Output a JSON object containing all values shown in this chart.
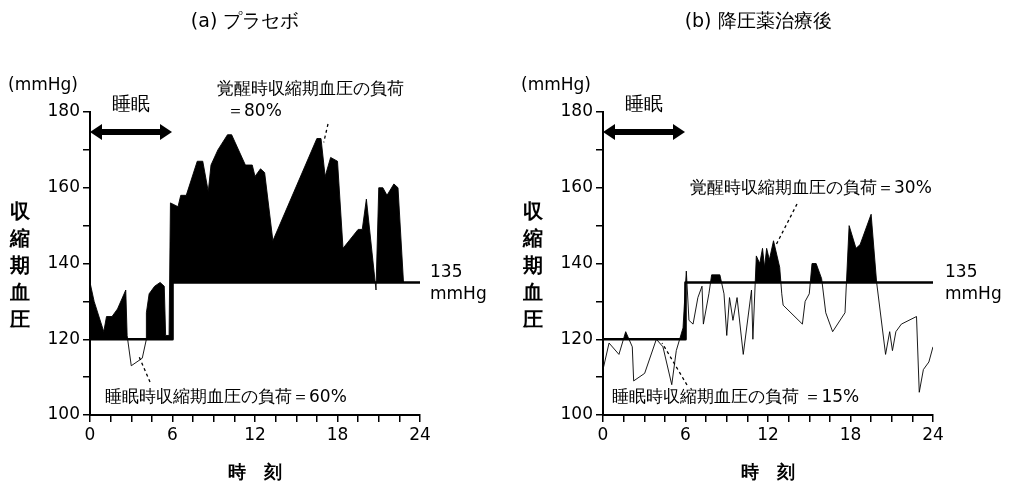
{
  "chart_data": [
    {
      "type": "line",
      "title": "(a) プラセボ",
      "xlabel": "時　刻",
      "ylabel": "収縮期血圧",
      "xlim": [
        0,
        24
      ],
      "ylim": [
        100,
        180
      ],
      "xticks": [
        0,
        {
          "value": 1.5,
          "label": null
        },
        {
          "value": 3,
          "label": null
        },
        {
          "value": 4.5,
          "label": null
        },
        6,
        {
          "value": 7.5,
          "label": null
        },
        {
          "value": 9,
          "label": null
        },
        {
          "value": 10.5,
          "label": null
        },
        12,
        {
          "value": 13.5,
          "label": null
        },
        {
          "value": 15,
          "label": null
        },
        {
          "value": 16.5,
          "label": null
        },
        18,
        {
          "value": 19.5,
          "label": null
        },
        {
          "value": 21,
          "label": null
        },
        {
          "value": 22.5,
          "label": null
        },
        24
      ],
      "yticks": [
        100,
        {
          "value": 110,
          "label": null
        },
        120,
        {
          "value": 130,
          "label": null
        },
        140,
        {
          "value": 150,
          "label": null
        },
        160,
        {
          "value": 170,
          "label": null
        },
        180
      ],
      "grid": false,
      "legend": false,
      "marker": "none",
      "series": [
        {
          "type": "area",
          "color": "#000000",
          "x": [
            0,
            0.3,
            1.0,
            1.2,
            1.6,
            2.0,
            2.6,
            2.7,
            3.0,
            3.8,
            4.1,
            4.1,
            4.3,
            4.7,
            5.1,
            5.4,
            5.5,
            5.75,
            5.85,
            6.4,
            6.6,
            7.0,
            7.8,
            8.2,
            8.6,
            8.8,
            9.3,
            10.0,
            10.3,
            11.3,
            11.8,
            12.0,
            12.4,
            12.7,
            13.3,
            16.5,
            16.8,
            17.1,
            17.5,
            18.0,
            18.4,
            19.5,
            19.8,
            20.1,
            20.8,
            21.0,
            21.3,
            21.6,
            22.1,
            22.4,
            22.8
          ],
          "values": [
            135,
            130,
            122,
            126,
            126,
            128,
            133,
            121,
            113,
            115,
            120,
            127,
            132,
            134,
            135,
            134,
            121,
            121,
            156,
            155,
            158,
            158,
            167,
            167,
            159,
            166,
            170,
            174,
            174,
            166,
            166,
            163,
            165,
            164,
            146,
            173,
            173,
            163,
            168,
            167,
            144,
            149,
            149,
            157,
            133,
            160,
            160,
            158,
            161,
            160,
            135
          ]
        },
        {
          "type": "line",
          "color": "#000000",
          "x": [
            0,
            6,
            6,
            24
          ],
          "values": [
            120,
            120,
            135,
            135
          ]
        }
      ],
      "annotations": [
        "(mmHg)",
        "睡眠",
        {
          "text": "覚醒時収縮期血圧の負荷＝80%",
          "x": 17,
          "y": 172
        },
        {
          "text": "睡眠時収縮期血圧の負荷＝60%",
          "x": 3.5,
          "y": 116
        },
        {
          "text": "135 mmHg",
          "x": 24,
          "y": 135
        }
      ]
    },
    {
      "type": "line",
      "title": "(b) 降圧薬治療後",
      "xlabel": "時　刻",
      "ylabel": "収縮期血圧",
      "xlim": [
        0,
        24
      ],
      "ylim": [
        100,
        180
      ],
      "xticks": [
        0,
        {
          "value": 1.5,
          "label": null
        },
        {
          "value": 3,
          "label": null
        },
        {
          "value": 4.5,
          "label": null
        },
        6,
        {
          "value": 7.5,
          "label": null
        },
        {
          "value": 9,
          "label": null
        },
        {
          "value": 10.5,
          "label": null
        },
        12,
        {
          "value": 13.5,
          "label": null
        },
        {
          "value": 15,
          "label": null
        },
        {
          "value": 16.5,
          "label": null
        },
        18,
        {
          "value": 19.5,
          "label": null
        },
        {
          "value": 21,
          "label": null
        },
        {
          "value": 22.5,
          "label": null
        },
        24
      ],
      "yticks": [
        100,
        {
          "value": 110,
          "label": null
        },
        120,
        {
          "value": 130,
          "label": null
        },
        140,
        {
          "value": 150,
          "label": null
        },
        160,
        {
          "value": 170,
          "label": null
        },
        180
      ],
      "grid": false,
      "legend": false,
      "marker": "none",
      "series": [
        {
          "type": "area",
          "color": "#000000",
          "x": [
            0,
            0.44,
            1.16,
            1.65,
            2.13,
            2.23,
            3.03,
            3.88,
            4.36,
            5.0,
            5.33,
            5.82,
            6.06,
            6.25,
            6.55,
            6.9,
            7.2,
            7.3,
            7.7,
            7.9,
            8.5,
            8.8,
            9.0,
            9.2,
            9.45,
            9.75,
            10.2,
            10.8,
            10.9,
            11.15,
            11.4,
            11.6,
            11.75,
            11.9,
            12.1,
            12.4,
            12.85,
            13.0,
            13.1,
            14.5,
            14.7,
            15.0,
            15.2,
            15.5,
            15.9,
            16.2,
            16.7,
            17.6,
            17.9,
            18.4,
            18.7,
            18.9,
            19.5,
            19.9,
            20.55,
            20.85,
            21.05,
            21.3,
            21.7,
            22.8,
            23.0,
            23.3,
            23.7,
            24.0
          ],
          "values": [
            112,
            119,
            116,
            122,
            118,
            109,
            111,
            120,
            118,
            108,
            117,
            123,
            138,
            125,
            124,
            131,
            134,
            124,
            132,
            137,
            137,
            132,
            121,
            131,
            125,
            131,
            116,
            133,
            120,
            142,
            140,
            144,
            139,
            144,
            141,
            146,
            139,
            132,
            129,
            124,
            130,
            132,
            140,
            140,
            136,
            127,
            122,
            127,
            150,
            144,
            145,
            147,
            153,
            135,
            116,
            122,
            117,
            122,
            124,
            126,
            106,
            112,
            114,
            118
          ]
        },
        {
          "type": "line",
          "color": "#000000",
          "x": [
            0,
            6,
            6,
            24
          ],
          "values": [
            120,
            120,
            135,
            135
          ]
        }
      ],
      "annotations": [
        "(mmHg)",
        "睡眠",
        {
          "text": "覚醒時収縮期血圧の負荷＝30%",
          "x": 12.6,
          "y": 145
        },
        {
          "text": "睡眠時収縮期血圧の負荷 ＝15%",
          "x": 4.3,
          "y": 119
        },
        {
          "text": "135 mmHg",
          "x": 24,
          "y": 135
        }
      ]
    }
  ]
}
